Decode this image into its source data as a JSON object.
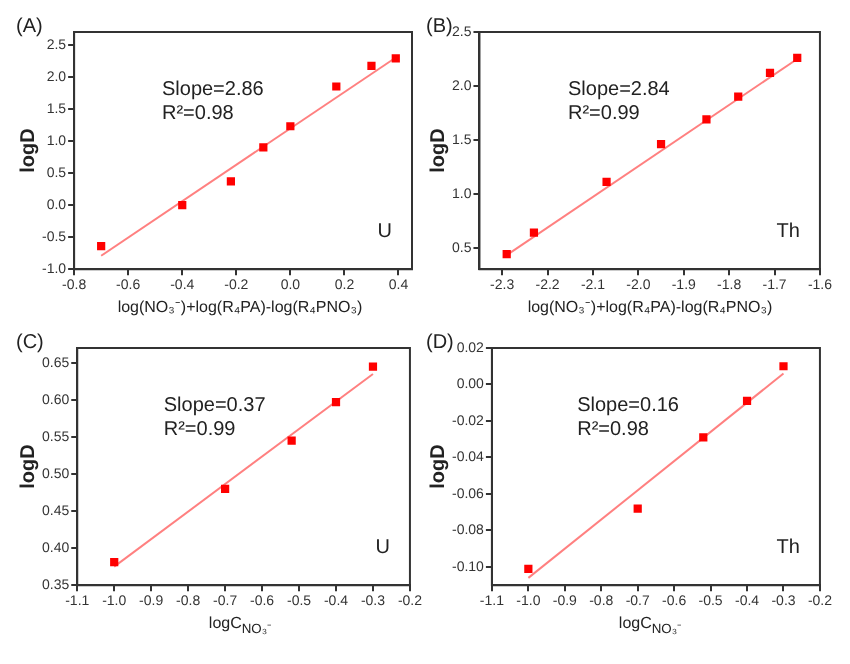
{
  "chart_data": [
    {
      "type": "scatter",
      "title": "(A)",
      "xlabel": "log(NO₃⁻)+log(R₄PA)-log(R₄PNO₃)",
      "ylabel": "logD",
      "xlim": [
        -0.8,
        0.45
      ],
      "xticks": [
        -0.8,
        -0.6,
        -0.4,
        -0.2,
        {
          "value": 0,
          "label": "0.0"
        },
        0.2,
        0.4
      ],
      "ylim": [
        -1.0,
        2.7
      ],
      "yticks": [
        {
          "value": -1,
          "label": "-1.0"
        },
        -0.5,
        {
          "value": 0,
          "label": "0.0"
        },
        0.5,
        {
          "value": 1,
          "label": "1.0"
        },
        1.5,
        {
          "value": 2,
          "label": "2.0"
        },
        2.5
      ],
      "grid": false,
      "legend": false,
      "annotations": [
        "Slope=2.86",
        "R²=0.98",
        "U"
      ],
      "series": [
        {
          "type": "scatter",
          "color": "#ff0000",
          "marker": "square",
          "x": [
            -0.7,
            -0.4,
            -0.22,
            -0.1,
            0.0,
            0.17,
            0.3,
            0.39
          ],
          "values": [
            -0.64,
            0.0,
            0.37,
            0.9,
            1.23,
            1.85,
            2.17,
            2.29
          ]
        },
        {
          "type": "line",
          "color": "#ff8080",
          "marker": "none",
          "x": [
            -0.7,
            0.4
          ],
          "values": [
            -0.79,
            2.33
          ]
        }
      ]
    },
    {
      "type": "scatter",
      "title": "(B)",
      "xlabel": "log(NO₃⁻)+log(R₄PA)-log(R₄PNO₃)",
      "ylabel": "logD",
      "xlim": [
        -2.35,
        -1.6
      ],
      "xticks": [
        -2.3,
        -2.2,
        -2.1,
        {
          "value": -2,
          "label": "-2.0"
        },
        -1.9,
        -1.8,
        -1.7,
        -1.6
      ],
      "ylim": [
        0.3,
        2.5
      ],
      "yticks": [
        0.5,
        {
          "value": 1,
          "label": "1.0"
        },
        1.5,
        {
          "value": 2,
          "label": "2.0"
        },
        2.5
      ],
      "grid": false,
      "legend": false,
      "annotations": [
        "Slope=2.84",
        "R²=0.99",
        "Th"
      ],
      "series": [
        {
          "type": "scatter",
          "color": "#ff0000",
          "marker": "square",
          "x": [
            -2.29,
            -2.23,
            -2.07,
            -1.95,
            -1.85,
            -1.78,
            -1.71,
            -1.65
          ],
          "values": [
            0.44,
            0.64,
            1.11,
            1.46,
            1.69,
            1.9,
            2.12,
            2.26
          ]
        },
        {
          "type": "line",
          "color": "#ff8080",
          "marker": "none",
          "x": [
            -2.29,
            -1.65
          ],
          "values": [
            0.43,
            2.25
          ]
        }
      ]
    },
    {
      "type": "scatter",
      "title": "(C)",
      "xlabel": "logC$_{NO₃⁻}$",
      "ylabel": "logD",
      "xlim": [
        -1.1,
        -0.2
      ],
      "xticks": [
        -1.1,
        {
          "value": -1,
          "label": "-1.0"
        },
        -0.9,
        -0.8,
        -0.7,
        -0.6,
        -0.5,
        -0.4,
        -0.3,
        -0.2
      ],
      "ylim": [
        0.35,
        0.67
      ],
      "yticks": [
        0.35,
        {
          "value": 0.4,
          "label": "0.40"
        },
        0.45,
        {
          "value": 0.5,
          "label": "0.50"
        },
        0.55,
        {
          "value": 0.6,
          "label": "0.60"
        },
        0.65
      ],
      "grid": false,
      "legend": false,
      "annotations": [
        "Slope=0.37",
        "R²=0.99",
        "U"
      ],
      "series": [
        {
          "type": "scatter",
          "color": "#ff0000",
          "marker": "square",
          "x": [
            -1.0,
            -0.7,
            -0.52,
            -0.4,
            -0.3
          ],
          "values": [
            0.381,
            0.48,
            0.545,
            0.597,
            0.645
          ]
        },
        {
          "type": "line",
          "color": "#ff8080",
          "marker": "none",
          "x": [
            -1.0,
            -0.3
          ],
          "values": [
            0.375,
            0.635
          ]
        }
      ]
    },
    {
      "type": "scatter",
      "title": "(D)",
      "xlabel": "logC$_{NO₃⁻}$",
      "ylabel": "logD",
      "xlim": [
        -1.1,
        -0.2
      ],
      "xticks": [
        -1.1,
        {
          "value": -1,
          "label": "-1.0"
        },
        -0.9,
        -0.8,
        -0.7,
        -0.6,
        -0.5,
        -0.4,
        -0.3,
        -0.2
      ],
      "ylim": [
        -0.11,
        0.02
      ],
      "yticks": [
        {
          "value": -0.1,
          "label": "-0.10"
        },
        -0.08,
        -0.06,
        -0.04,
        -0.02,
        {
          "value": 0,
          "label": "0.00"
        },
        0.02
      ],
      "grid": false,
      "legend": false,
      "annotations": [
        "Slope=0.16",
        "R²=0.98",
        "Th"
      ],
      "series": [
        {
          "type": "scatter",
          "color": "#ff0000",
          "marker": "square",
          "x": [
            -1.0,
            -0.7,
            -0.52,
            -0.4,
            -0.3
          ],
          "values": [
            -0.101,
            -0.068,
            -0.029,
            -0.009,
            0.01
          ]
        },
        {
          "type": "line",
          "color": "#ff8080",
          "marker": "none",
          "x": [
            -1.0,
            -0.3
          ],
          "values": [
            -0.106,
            0.006
          ]
        }
      ]
    }
  ]
}
